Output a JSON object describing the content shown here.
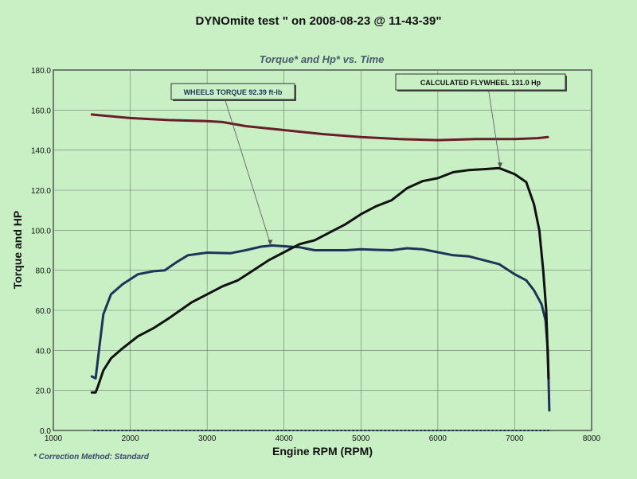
{
  "page": {
    "title": "DYNOmite test \" on 2008-08-23 @ 11-43-39\"",
    "footnote": "* Correction Method: Standard"
  },
  "chart_data": {
    "type": "line",
    "title": "Torque* and Hp* vs. Time",
    "xlabel": "Engine RPM (RPM)",
    "ylabel": "Torque and HP",
    "xlim": [
      1000,
      8000
    ],
    "ylim": [
      0,
      180
    ],
    "x_ticks": [
      "1000",
      "2000",
      "3000",
      "4000",
      "5000",
      "6000",
      "7000",
      "8000"
    ],
    "y_ticks": [
      "0.0",
      "20.0",
      "40.0",
      "60.0",
      "80.0",
      "100.0",
      "120.0",
      "140.0",
      "160.0",
      "180.0"
    ],
    "grid": true,
    "annotations": [
      {
        "text": "WHEELS TORQUE 92.39 ft-lb",
        "points_to": [
          3820,
          92.4
        ]
      },
      {
        "text": "CALCULATED FLYWHEEL 131.0 Hp",
        "points_to": [
          6810,
          131.0
        ]
      }
    ],
    "series": [
      {
        "color": "#6a1c2a",
        "x": [
          1500,
          2000,
          2500,
          3000,
          3200,
          3500,
          4000,
          4500,
          5000,
          5500,
          6000,
          6500,
          7000,
          7300,
          7430
        ],
        "y": [
          157.8,
          156.0,
          155.0,
          154.5,
          154.0,
          152.0,
          150.0,
          148.0,
          146.5,
          145.5,
          145.0,
          145.5,
          145.5,
          146.0,
          146.5
        ]
      },
      {
        "color": "#1e3357",
        "x": [
          1500,
          1550,
          1600,
          1650,
          1750,
          1900,
          2100,
          2300,
          2450,
          2600,
          2750,
          3000,
          3300,
          3500,
          3700,
          3850,
          4000,
          4200,
          4400,
          4600,
          4800,
          5000,
          5200,
          5400,
          5600,
          5800,
          6000,
          6200,
          6400,
          6600,
          6800,
          7000,
          7150,
          7250,
          7350,
          7400,
          7430,
          7450
        ],
        "y": [
          27,
          26,
          42,
          58,
          68,
          73,
          78,
          79.5,
          80,
          84,
          87.5,
          88.8,
          88.5,
          90,
          91.8,
          92.4,
          92,
          91.5,
          90,
          90,
          90,
          90.5,
          90.2,
          90,
          91,
          90.5,
          89,
          87.5,
          87,
          85,
          83,
          78,
          75,
          70,
          63,
          55,
          40,
          10
        ]
      },
      {
        "color": "#111111",
        "x": [
          1500,
          1550,
          1580,
          1650,
          1750,
          1900,
          2100,
          2300,
          2500,
          2800,
          3000,
          3200,
          3400,
          3600,
          3800,
          4000,
          4200,
          4400,
          4600,
          4800,
          5000,
          5200,
          5400,
          5600,
          5800,
          6000,
          6200,
          6400,
          6600,
          6800,
          7000,
          7150,
          7250,
          7320,
          7370,
          7410,
          7440
        ],
        "y": [
          19,
          19,
          22,
          30,
          36,
          41,
          47,
          51,
          56,
          64,
          68,
          72,
          75,
          80,
          85,
          89,
          93,
          95,
          99,
          103,
          108,
          112,
          115,
          121,
          124.5,
          126,
          129,
          130,
          130.5,
          131,
          128,
          124,
          113,
          100,
          80,
          60,
          26
        ]
      }
    ]
  }
}
